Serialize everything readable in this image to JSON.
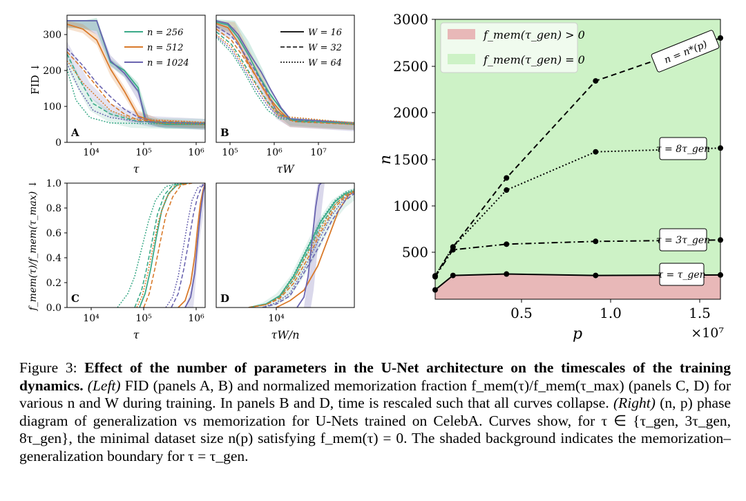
{
  "figure": {
    "panels": {
      "A": {
        "label": "A",
        "xlabel": "τ",
        "ylabel": "FID ↓",
        "xticks": [
          "10⁴",
          "10⁵",
          "10⁶"
        ],
        "yticks": [
          "0",
          "100",
          "200",
          "300"
        ]
      },
      "B": {
        "label": "B",
        "xlabel": "τW",
        "xticks": [
          "10⁵",
          "10⁶",
          "10⁷"
        ]
      },
      "C": {
        "label": "C",
        "xlabel": "τ",
        "ylabel": "f_mem(τ)/f_mem(τ_max) ↓",
        "xticks": [
          "10⁴",
          "10⁵",
          "10⁶"
        ],
        "yticks": [
          "0.0",
          "0.2",
          "0.4",
          "0.6",
          "0.8",
          "1.0"
        ]
      },
      "D": {
        "label": "D",
        "xlabel": "τW/n",
        "xticks": [
          "10⁴"
        ]
      }
    },
    "legend_n": [
      {
        "label": "n = 256",
        "color": "#3aaa88"
      },
      {
        "label": "n = 512",
        "color": "#d97a2b"
      },
      {
        "label": "n = 1024",
        "color": "#6a64b0"
      }
    ],
    "legend_W": [
      {
        "label": "W = 16",
        "style": "solid"
      },
      {
        "label": "W = 32",
        "style": "dashed"
      },
      {
        "label": "W = 64",
        "style": "dotted"
      }
    ],
    "right": {
      "xlabel": "p",
      "ylabel": "n",
      "xticks": [
        "0.5",
        "1.0",
        "1.5"
      ],
      "yticks": [
        "500",
        "1000",
        "1500",
        "2000",
        "2500",
        "3000"
      ],
      "x_multiplier": "×10⁷",
      "legend": [
        {
          "label": "f_mem(τ_gen) > 0",
          "color": "#e8b8b8"
        },
        {
          "label": "f_mem(τ_gen) = 0",
          "color": "#cdf2c6"
        }
      ],
      "curve_labels": [
        "n = n*(p)",
        "τ = 8τ_gen",
        "τ = 3τ_gen",
        "τ = τ_gen"
      ]
    }
  },
  "chart_data": {
    "type": "line",
    "xlabel": "p",
    "ylabel": "n",
    "x_scale_note": "×10^7",
    "xlim": [
      0.0,
      1.6
    ],
    "ylim": [
      0,
      3000
    ],
    "series": [
      {
        "name": "n = n*(p)",
        "style": "dashed",
        "x": [
          0.0,
          0.1,
          0.4,
          0.9,
          1.6
        ],
        "y": [
          250,
          560,
          1300,
          2340,
          2800
        ]
      },
      {
        "name": "τ = 8τ_gen",
        "style": "dotted",
        "x": [
          0.0,
          0.1,
          0.4,
          0.9,
          1.6
        ],
        "y": [
          250,
          560,
          1170,
          1580,
          1620
        ]
      },
      {
        "name": "τ = 3τ_gen",
        "style": "dashdot",
        "x": [
          0.0,
          0.1,
          0.4,
          0.9,
          1.6
        ],
        "y": [
          240,
          530,
          590,
          620,
          635
        ]
      },
      {
        "name": "τ = τ_gen",
        "style": "solid",
        "x": [
          0.0,
          0.1,
          0.4,
          0.9,
          1.6
        ],
        "y": [
          100,
          255,
          270,
          255,
          260
        ]
      }
    ]
  },
  "caption": {
    "fig_label": "Figure 3:",
    "bold_title": "Effect of the number of parameters in the U-Net architecture on the timescales of the training dynamics.",
    "left_label": "(Left)",
    "text1": "FID (panels A, B) and normalized memorization fraction f_mem(τ)/f_mem(τ_max) (panels C, D) for various n and W during training. In panels B and D, time is rescaled such that all curves collapse.",
    "right_label": "(Right)",
    "text2": "(n, p) phase diagram of generalization vs memorization for U-Nets trained on CelebA. Curves show, for τ ∈ {τ_gen, 3τ_gen, 8τ_gen}, the minimal dataset size n(p) satisfying f_mem(τ) = 0. The shaded background indicates the memorization–generalization boundary for τ = τ_gen."
  }
}
